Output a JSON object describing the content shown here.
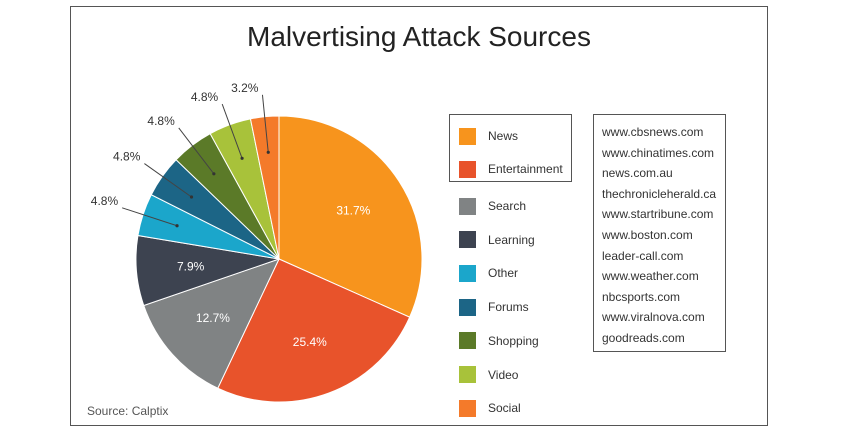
{
  "chart_data": {
    "type": "pie",
    "title": "Malvertising Attack Sources",
    "slices": [
      {
        "label": "News",
        "value": 31.7,
        "display": "31.7%",
        "color": "#f7941d"
      },
      {
        "label": "Entertainment",
        "value": 25.4,
        "display": "25.4%",
        "color": "#e8532b"
      },
      {
        "label": "Search",
        "value": 12.7,
        "display": "12.7%",
        "color": "#808384"
      },
      {
        "label": "Learning",
        "value": 7.9,
        "display": "7.9%",
        "color": "#3d4350"
      },
      {
        "label": "Other",
        "value": 4.8,
        "display": "4.8%",
        "color": "#1ba6cb"
      },
      {
        "label": "Forums",
        "value": 4.8,
        "display": "4.8%",
        "color": "#1c6586"
      },
      {
        "label": "Shopping",
        "value": 4.8,
        "display": "4.8%",
        "color": "#5b7a28"
      },
      {
        "label": "Video",
        "value": 4.8,
        "display": "4.8%",
        "color": "#a8c23a"
      },
      {
        "label": "Social",
        "value": 3.2,
        "display": "3.2%",
        "color": "#f47a2a"
      }
    ],
    "legend_position": "right",
    "highlighted_legend": [
      "News",
      "Entertainment"
    ]
  },
  "domains": [
    "www.cbsnews.com",
    "www.chinatimes.com",
    "news.com.au",
    "thechronicleherald.ca",
    "www.startribune.com",
    "www.boston.com",
    "leader-call.com",
    "www.weather.com",
    "nbcsports.com",
    "www.viralnova.com",
    "goodreads.com"
  ],
  "source": "Source: Calptix"
}
